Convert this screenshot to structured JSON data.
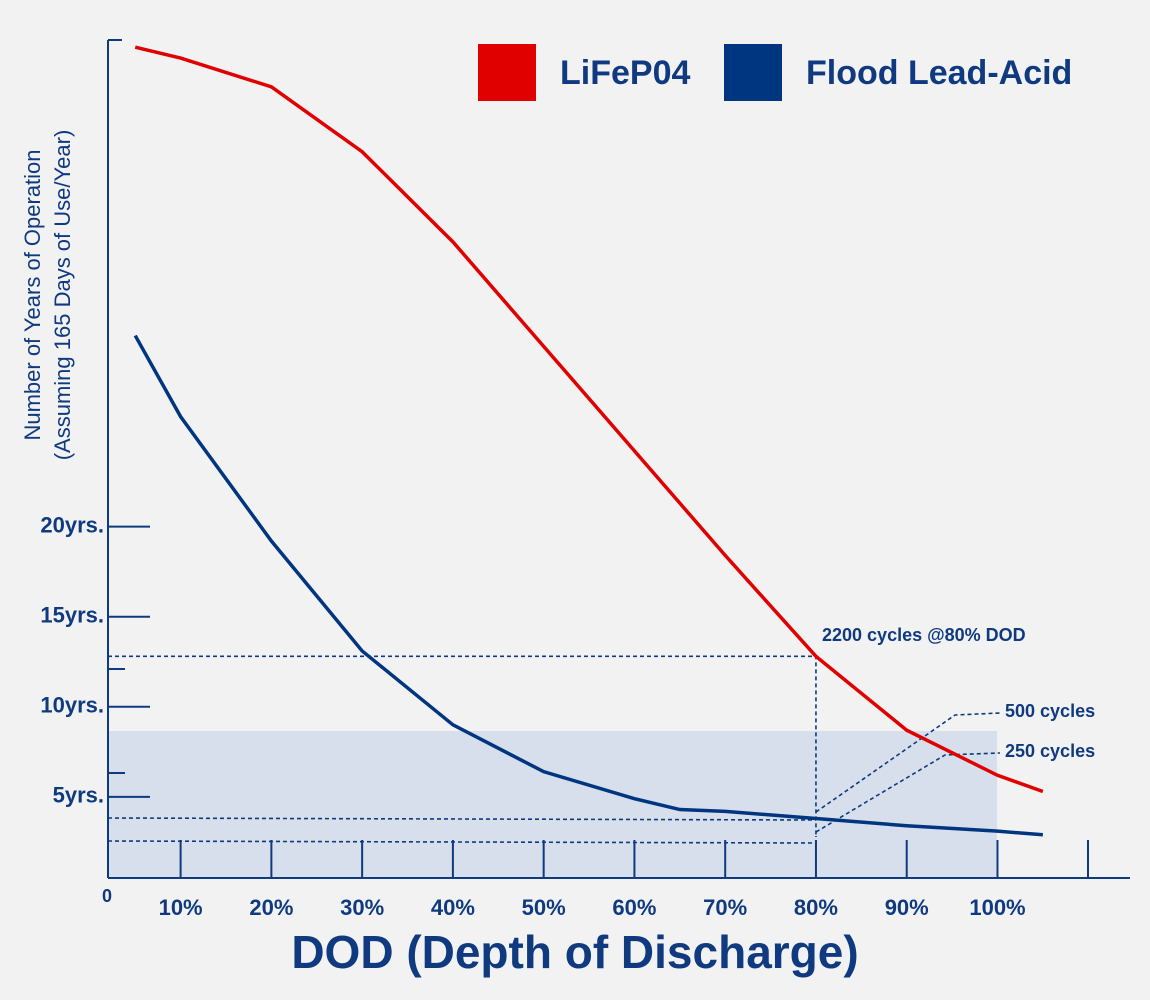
{
  "chart_data": {
    "type": "line",
    "x_label": "DOD (Depth of Discharge)",
    "y_label": "Number of Years of Operation",
    "y_sublabel": "(Assuming 165 Days of Use/Year)",
    "origin_label": "0",
    "annotations": [
      "2200 cycles @80% DOD",
      "500 cycles",
      "250 cycles"
    ],
    "x": [
      5,
      10,
      20,
      30,
      40,
      50,
      60,
      65,
      70,
      80,
      90,
      100,
      105
    ],
    "series": [
      {
        "name": "LiFeP04",
        "color": "#e00000",
        "values": [
          46.6,
          46.0,
          44.4,
          40.8,
          35.8,
          30.0,
          24.2,
          21.3,
          18.4,
          12.8,
          8.7,
          6.2,
          5.3
        ]
      },
      {
        "name": "Flood Lead-Acid",
        "color": "#003580",
        "values": [
          30.6,
          26.1,
          19.2,
          13.1,
          9.0,
          6.4,
          4.9,
          4.3,
          4.2,
          3.8,
          3.4,
          3.1,
          2.9
        ]
      }
    ],
    "xlim": [
      2,
      114.6
    ],
    "ylim": [
      0.5,
      47
    ],
    "xticks": [
      {
        "value": 10,
        "label": "10%"
      },
      {
        "value": 20,
        "label": "20%"
      },
      {
        "value": 30,
        "label": "30%"
      },
      {
        "value": 40,
        "label": "40%"
      },
      {
        "value": 50,
        "label": "50%"
      },
      {
        "value": 60,
        "label": "60%"
      },
      {
        "value": 70,
        "label": "70%"
      },
      {
        "value": 80,
        "label": "80%"
      },
      {
        "value": 90,
        "label": "90%"
      },
      {
        "value": 100,
        "label": "100%"
      }
    ],
    "yticks": [
      {
        "value": 5,
        "label": "5yrs."
      },
      {
        "value": 10,
        "label": "10yrs."
      },
      {
        "value": 15,
        "label": "15yrs."
      },
      {
        "value": 20,
        "label": "20yrs."
      }
    ],
    "legend": "top-right"
  }
}
